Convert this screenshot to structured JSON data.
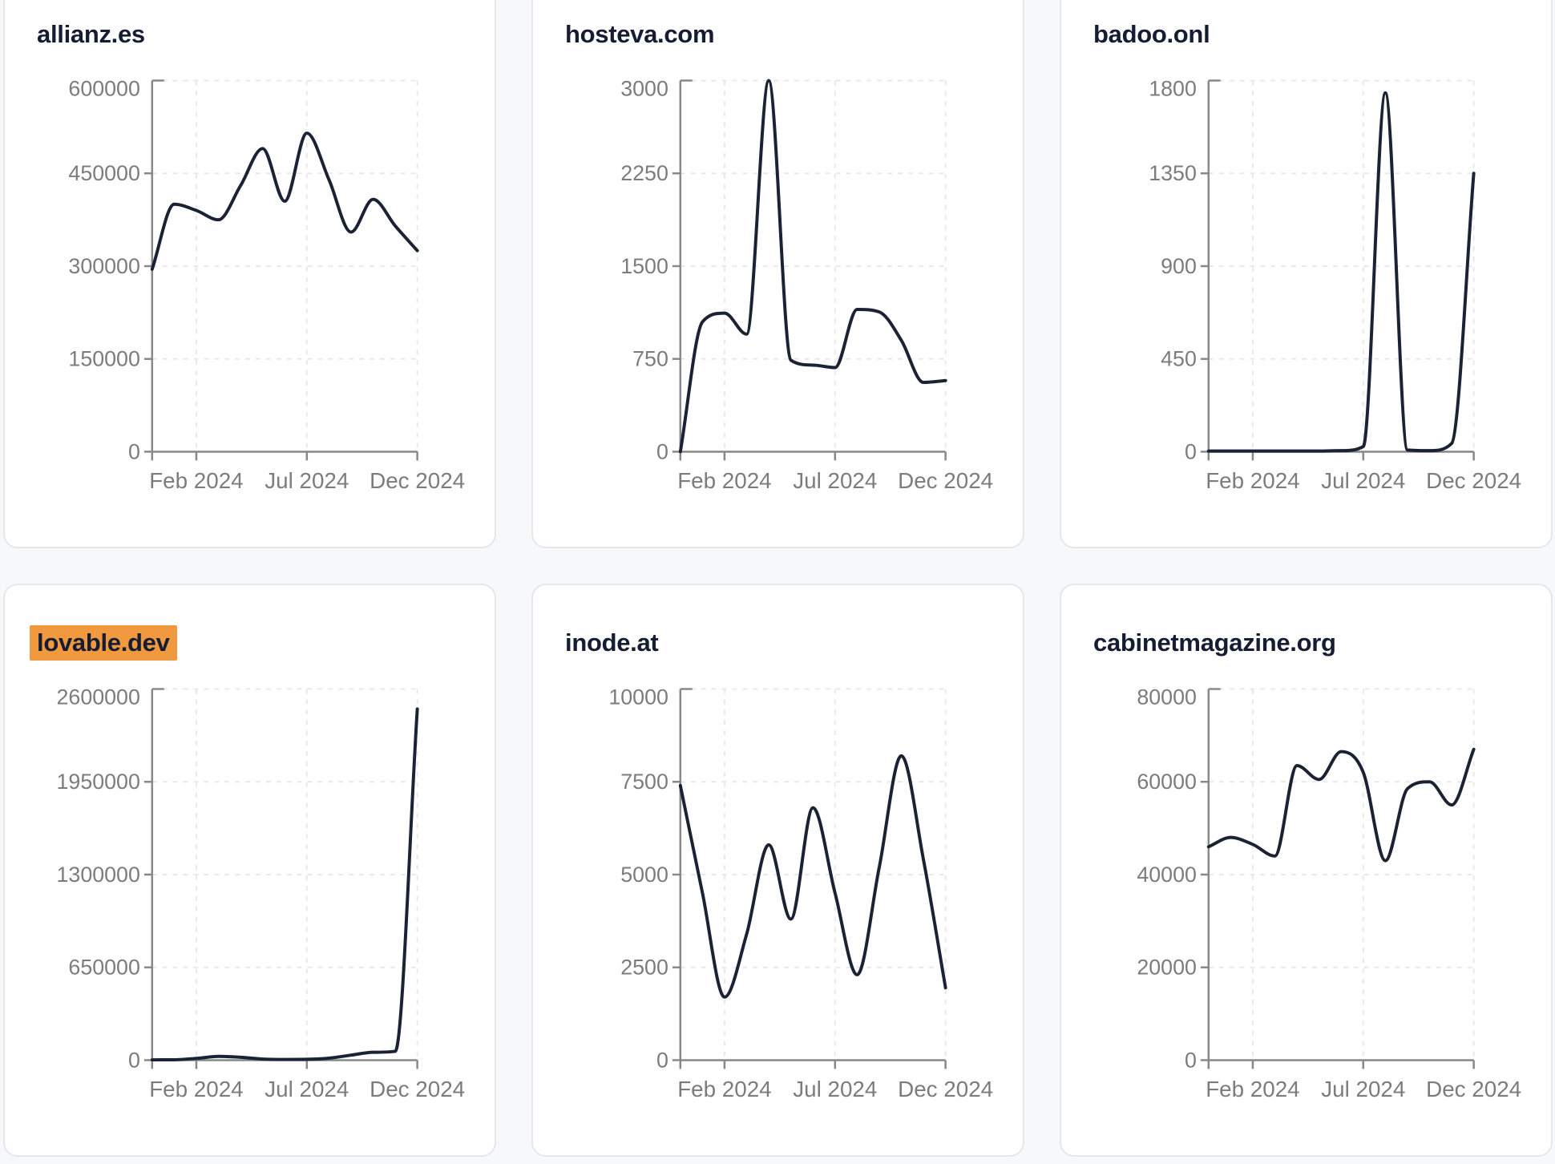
{
  "page": {
    "background_color": "#f7f8fa",
    "card_background": "#ffffff",
    "card_border_color": "#e4e8ee"
  },
  "style": {
    "line_color": "#1b2233",
    "title_color": "#161d33",
    "highlight_bg": "#f0993f",
    "axis_color": "#888888",
    "tick_label_color": "#7c7c7c",
    "grid_color": "#e9e9e9"
  },
  "chart_data": [
    {
      "type": "line",
      "title": "allianz.es",
      "highlighted": false,
      "x": [
        "Dec 2023",
        "Jan 2024",
        "Feb 2024",
        "Mar 2024",
        "Apr 2024",
        "May 2024",
        "Jun 2024",
        "Jul 2024",
        "Aug 2024",
        "Sep 2024",
        "Oct 2024",
        "Nov 2024",
        "Dec 2024"
      ],
      "x_tick_labels": [
        "Feb 2024",
        "Jul 2024",
        "Dec 2024"
      ],
      "x_tick_indices": [
        2,
        7,
        12
      ],
      "ylim": [
        0,
        600000
      ],
      "y_ticks": [
        0,
        150000,
        300000,
        450000,
        600000
      ],
      "values": [
        295000,
        400000,
        390000,
        375000,
        430000,
        490000,
        405000,
        515000,
        440000,
        355000,
        408000,
        365000,
        325000
      ],
      "grid": true,
      "legend": false
    },
    {
      "type": "line",
      "title": "hosteva.com",
      "highlighted": false,
      "x": [
        "Dec 2023",
        "Jan 2024",
        "Feb 2024",
        "Mar 2024",
        "Apr 2024",
        "May 2024",
        "Jun 2024",
        "Jul 2024",
        "Aug 2024",
        "Sep 2024",
        "Oct 2024",
        "Nov 2024",
        "Dec 2024"
      ],
      "x_tick_labels": [
        "Feb 2024",
        "Jul 2024",
        "Dec 2024"
      ],
      "x_tick_indices": [
        2,
        7,
        12
      ],
      "ylim": [
        0,
        3000
      ],
      "y_ticks": [
        0,
        750,
        1500,
        2250,
        3000
      ],
      "values": [
        0,
        1050,
        1120,
        950,
        3000,
        740,
        700,
        680,
        1150,
        1130,
        900,
        560,
        575
      ],
      "grid": true,
      "legend": false
    },
    {
      "type": "line",
      "title": "badoo.onl",
      "highlighted": false,
      "x": [
        "Dec 2023",
        "Jan 2024",
        "Feb 2024",
        "Mar 2024",
        "Apr 2024",
        "May 2024",
        "Jun 2024",
        "Jul 2024",
        "Aug 2024",
        "Sep 2024",
        "Oct 2024",
        "Nov 2024",
        "Dec 2024"
      ],
      "x_tick_labels": [
        "Feb 2024",
        "Jul 2024",
        "Dec 2024"
      ],
      "x_tick_indices": [
        2,
        7,
        12
      ],
      "ylim": [
        0,
        1800
      ],
      "y_ticks": [
        0,
        450,
        900,
        1350,
        1800
      ],
      "values": [
        3,
        3,
        3,
        3,
        3,
        3,
        5,
        25,
        1740,
        8,
        5,
        40,
        1350
      ],
      "grid": true,
      "legend": false
    },
    {
      "type": "line",
      "title": "lovable.dev",
      "highlighted": true,
      "x": [
        "Dec 2023",
        "Jan 2024",
        "Feb 2024",
        "Mar 2024",
        "Apr 2024",
        "May 2024",
        "Jun 2024",
        "Jul 2024",
        "Aug 2024",
        "Sep 2024",
        "Oct 2024",
        "Nov 2024",
        "Dec 2024"
      ],
      "x_tick_labels": [
        "Feb 2024",
        "Jul 2024",
        "Dec 2024"
      ],
      "x_tick_indices": [
        2,
        7,
        12
      ],
      "ylim": [
        0,
        2600000
      ],
      "y_ticks": [
        0,
        650000,
        1300000,
        1950000,
        2600000
      ],
      "values": [
        2000,
        3000,
        12000,
        26000,
        20000,
        8000,
        5000,
        6000,
        14000,
        35000,
        55000,
        62000,
        2460000
      ],
      "grid": true,
      "legend": false
    },
    {
      "type": "line",
      "title": "inode.at",
      "highlighted": false,
      "x": [
        "Dec 2023",
        "Jan 2024",
        "Feb 2024",
        "Mar 2024",
        "Apr 2024",
        "May 2024",
        "Jun 2024",
        "Jul 2024",
        "Aug 2024",
        "Sep 2024",
        "Oct 2024",
        "Nov 2024",
        "Dec 2024"
      ],
      "x_tick_labels": [
        "Feb 2024",
        "Jul 2024",
        "Dec 2024"
      ],
      "x_tick_indices": [
        2,
        7,
        12
      ],
      "ylim": [
        0,
        10000
      ],
      "y_ticks": [
        0,
        2500,
        5000,
        7500,
        10000
      ],
      "values": [
        7400,
        4500,
        1700,
        3400,
        5800,
        3800,
        6800,
        4500,
        2300,
        5200,
        8200,
        5400,
        1950
      ],
      "grid": true,
      "legend": false
    },
    {
      "type": "line",
      "title": "cabinetmagazine.org",
      "highlighted": false,
      "x": [
        "Dec 2023",
        "Jan 2024",
        "Feb 2024",
        "Mar 2024",
        "Apr 2024",
        "May 2024",
        "Jun 2024",
        "Jul 2024",
        "Aug 2024",
        "Sep 2024",
        "Oct 2024",
        "Nov 2024",
        "Dec 2024"
      ],
      "x_tick_labels": [
        "Feb 2024",
        "Jul 2024",
        "Dec 2024"
      ],
      "x_tick_indices": [
        2,
        7,
        12
      ],
      "ylim": [
        0,
        80000
      ],
      "y_ticks": [
        0,
        20000,
        40000,
        60000,
        80000
      ],
      "values": [
        46000,
        48000,
        46500,
        44000,
        63500,
        60500,
        66500,
        62000,
        43000,
        58500,
        60000,
        55000,
        67000
      ],
      "grid": true,
      "legend": false
    }
  ]
}
